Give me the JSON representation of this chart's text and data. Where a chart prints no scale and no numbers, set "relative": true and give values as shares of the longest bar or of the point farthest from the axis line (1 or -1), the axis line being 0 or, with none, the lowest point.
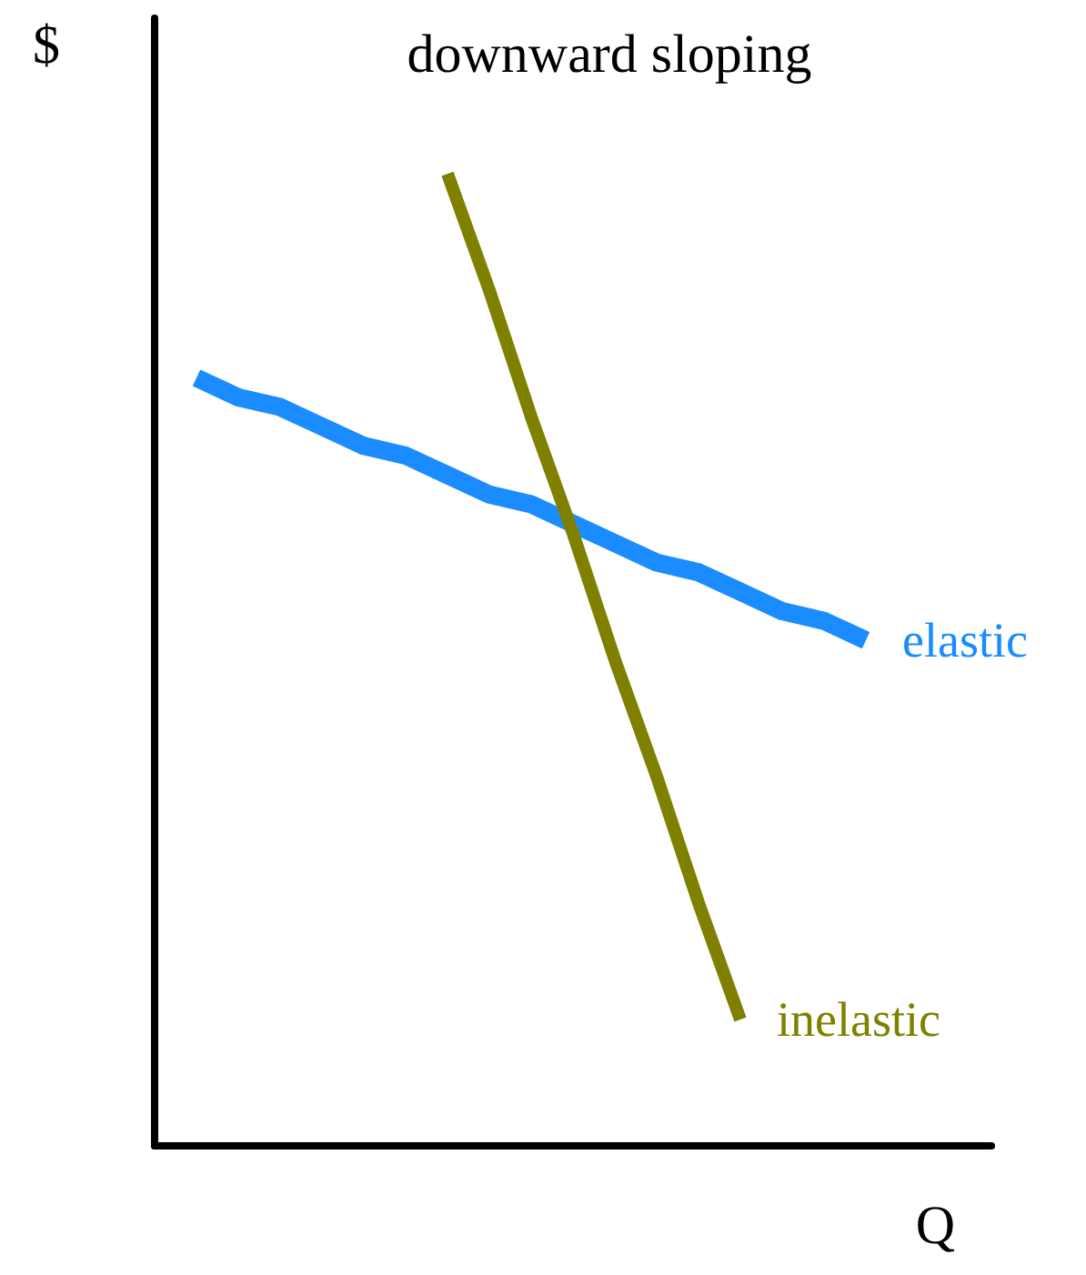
{
  "chart_data": {
    "type": "line",
    "title": "downward sloping",
    "xlabel": "Q",
    "ylabel": "$",
    "relative": true,
    "grid": false,
    "legend": false,
    "marker": "none",
    "line_style": "solid",
    "categories": [
      null,
      null,
      null,
      null,
      null,
      null,
      null,
      null,
      null,
      null,
      null,
      null,
      null,
      null,
      null,
      null,
      null,
      null,
      null,
      null,
      null
    ],
    "series": [
      {
        "name": "elastic",
        "color": "#1a8cff",
        "values": [
          null,
          0.79,
          0.77,
          0.76,
          0.74,
          0.72,
          0.71,
          0.69,
          0.67,
          0.66,
          0.64,
          0.62,
          0.6,
          0.59,
          0.57,
          0.55,
          0.54,
          0.52,
          null,
          null,
          null
        ]
      },
      {
        "name": "inelastic",
        "color": "#808000",
        "values": [
          null,
          null,
          null,
          null,
          null,
          null,
          null,
          1,
          0.88,
          0.75,
          0.63,
          0.5,
          0.38,
          0.25,
          0.13,
          null,
          null,
          null,
          null,
          null,
          null
        ]
      }
    ]
  }
}
